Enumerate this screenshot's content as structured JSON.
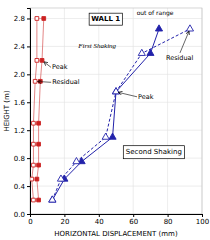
{
  "chart_data": {
    "type": "line",
    "title": "WALL 1",
    "xlabel": "HORIZONTAL DISPLACEMENT (mm)",
    "ylabel": "HEIGHT (m)",
    "xlim": [
      0,
      100
    ],
    "ylim": [
      0,
      2.95
    ],
    "xticks": [
      0,
      20,
      40,
      60,
      80,
      100
    ],
    "yticks": [
      {
        "value": 0,
        "label": "0.0"
      },
      0.4,
      0.8,
      1.2,
      1.6,
      {
        "value": 2,
        "label": "2.0"
      },
      2.4,
      2.8
    ],
    "grid": true,
    "series": [
      {
        "color": "#cc2222",
        "marker": "square",
        "line_style": "solid",
        "x": [
          5,
          4,
          5,
          5,
          5,
          6,
          7,
          8
        ],
        "values": [
          0.2,
          0.5,
          0.7,
          1.0,
          1.3,
          1.9,
          2.2,
          2.8
        ]
      },
      {
        "color": "#cc2222",
        "marker": "square-open",
        "line_style": "solid",
        "x": [
          2,
          1,
          2,
          2,
          2,
          3,
          4,
          4
        ],
        "values": [
          0.2,
          0.5,
          0.7,
          1.0,
          1.3,
          1.9,
          2.2,
          2.8
        ]
      },
      {
        "color": "#2222aa",
        "marker": "triangle",
        "line_style": "solid",
        "x": [
          13,
          20,
          30,
          48,
          50,
          70,
          75
        ],
        "values": [
          0.2,
          0.5,
          0.75,
          1.1,
          1.75,
          2.3,
          2.65
        ]
      },
      {
        "color": "#2222aa",
        "marker": "triangle-open",
        "line_style": "dashed",
        "x": [
          13,
          18,
          27,
          44,
          50,
          65,
          93
        ],
        "values": [
          0.2,
          0.5,
          0.75,
          1.1,
          1.75,
          2.3,
          2.65
        ]
      }
    ],
    "annotations": [
      "First Shaking",
      "Second Shaking",
      "out of range",
      "Peak",
      "Residual",
      "Peak",
      "Residual"
    ]
  }
}
